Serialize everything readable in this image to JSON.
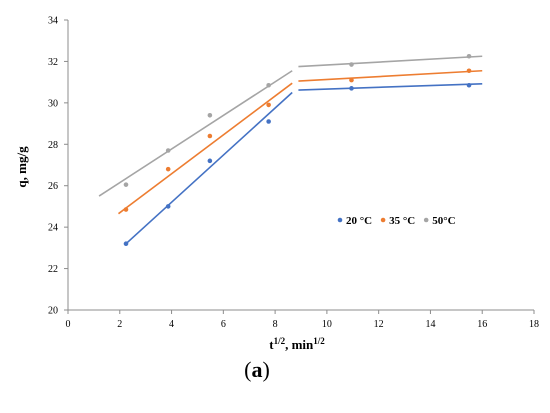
{
  "chart_data": {
    "type": "scatter",
    "xlabel_main": "t",
    "xlabel_sup1": "1/2",
    "xlabel_mid": ", min",
    "xlabel_sup2": "1/2",
    "ylabel": "q, mg/g",
    "xlim": [
      0,
      18
    ],
    "ylim": [
      20,
      34
    ],
    "xticks": [
      0,
      2,
      4,
      6,
      8,
      10,
      12,
      14,
      16,
      18
    ],
    "yticks": [
      20,
      22,
      24,
      26,
      28,
      30,
      32,
      34
    ],
    "grid": false,
    "legend_position": "middle-right",
    "series": [
      {
        "name": "20 °C",
        "color": "#4472C4",
        "points": [
          [
            2.24,
            23.2
          ],
          [
            3.87,
            25.0
          ],
          [
            5.48,
            27.2
          ],
          [
            7.75,
            29.1
          ],
          [
            10.95,
            30.7
          ],
          [
            15.49,
            30.85
          ]
        ],
        "fit_lines": [
          [
            [
              2.24,
              23.2
            ],
            [
              8.66,
              30.5
            ]
          ],
          [
            [
              8.9,
              30.62
            ],
            [
              16.0,
              30.92
            ]
          ]
        ]
      },
      {
        "name": "35 °C",
        "color": "#ED7D31",
        "points": [
          [
            2.24,
            24.85
          ],
          [
            3.87,
            26.8
          ],
          [
            5.48,
            28.4
          ],
          [
            7.75,
            29.9
          ],
          [
            10.95,
            31.1
          ],
          [
            15.49,
            31.55
          ]
        ],
        "fit_lines": [
          [
            [
              1.95,
              24.65
            ],
            [
              8.66,
              30.95
            ]
          ],
          [
            [
              8.9,
              31.05
            ],
            [
              16.0,
              31.55
            ]
          ]
        ]
      },
      {
        "name": "50°C",
        "color": "#A5A5A5",
        "points": [
          [
            2.24,
            26.05
          ],
          [
            3.87,
            27.7
          ],
          [
            5.48,
            29.4
          ],
          [
            7.75,
            30.85
          ],
          [
            10.95,
            31.85
          ],
          [
            15.49,
            32.25
          ]
        ],
        "fit_lines": [
          [
            [
              1.2,
              25.5
            ],
            [
              8.66,
              31.55
            ]
          ],
          [
            [
              8.9,
              31.75
            ],
            [
              16.0,
              32.25
            ]
          ]
        ]
      }
    ]
  },
  "caption": {
    "open": "(",
    "letter": "a",
    "close": ")"
  }
}
